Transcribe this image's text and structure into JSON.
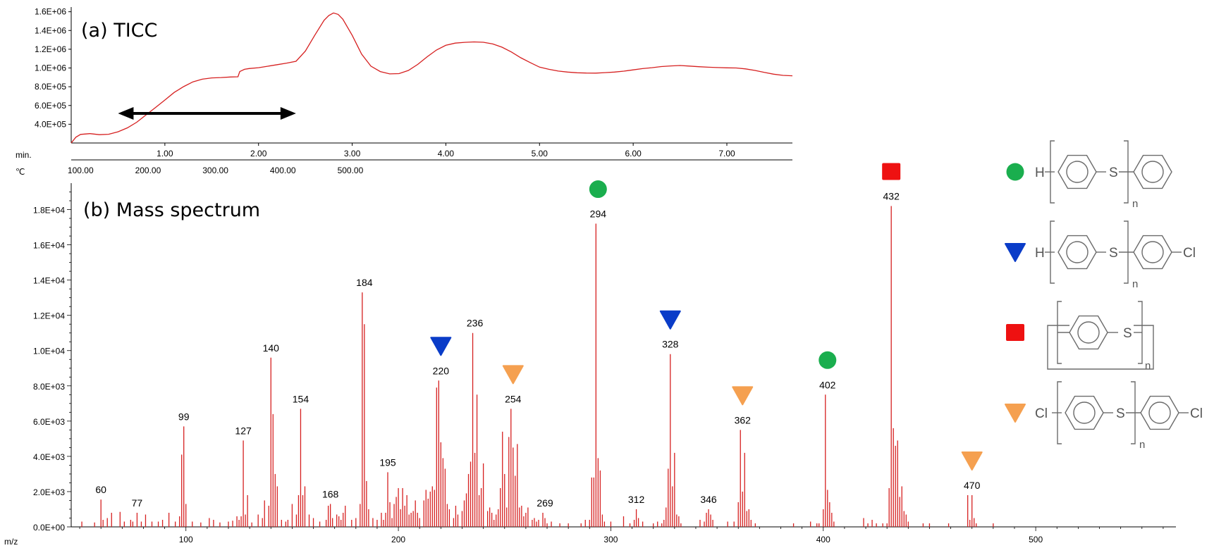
{
  "chart_data": [
    {
      "type": "line",
      "title": "(a) TICC",
      "xlabel": "min.",
      "secondary_xlabel": "℃",
      "xlim": [
        0,
        7.7
      ],
      "ylim": [
        200000,
        1650000
      ],
      "grid": false,
      "x_ticks": [
        "1.00",
        "2.00",
        "3.00",
        "4.00",
        "5.00",
        "6.00",
        "7.00"
      ],
      "temp_ticks": [
        "100.00",
        "200.00",
        "300.00",
        "400.00",
        "500.00"
      ],
      "y_ticks": [
        "1.6E+06",
        "1.4E+06",
        "1.2E+06",
        "1.0E+06",
        "8.0E+05",
        "6.0E+05",
        "4.0E+05"
      ],
      "series": [
        {
          "color": "#d62020",
          "x": [
            0.0,
            0.05,
            0.1,
            0.2,
            0.3,
            0.4,
            0.5,
            0.6,
            0.7,
            0.8,
            0.9,
            1.0,
            1.1,
            1.2,
            1.3,
            1.4,
            1.5,
            1.6,
            1.7,
            1.78,
            1.8,
            1.85,
            1.9,
            2.0,
            2.1,
            2.2,
            2.3,
            2.4,
            2.5,
            2.6,
            2.7,
            2.75,
            2.8,
            2.85,
            2.9,
            3.0,
            3.1,
            3.2,
            3.3,
            3.4,
            3.5,
            3.6,
            3.7,
            3.8,
            3.9,
            4.0,
            4.1,
            4.2,
            4.3,
            4.4,
            4.5,
            4.6,
            4.7,
            4.8,
            4.9,
            5.0,
            5.1,
            5.2,
            5.3,
            5.4,
            5.5,
            5.6,
            5.7,
            5.8,
            5.9,
            6.0,
            6.1,
            6.2,
            6.3,
            6.4,
            6.5,
            6.6,
            6.7,
            6.8,
            6.9,
            7.0,
            7.1,
            7.2,
            7.3,
            7.4,
            7.5,
            7.6,
            7.7
          ],
          "values": [
            200000,
            260000,
            290000,
            300000,
            290000,
            295000,
            320000,
            360000,
            420000,
            500000,
            580000,
            660000,
            740000,
            800000,
            850000,
            880000,
            895000,
            900000,
            905000,
            905000,
            960000,
            985000,
            995000,
            1005000,
            1020000,
            1035000,
            1050000,
            1070000,
            1180000,
            1350000,
            1510000,
            1560000,
            1585000,
            1570000,
            1520000,
            1350000,
            1150000,
            1020000,
            960000,
            935000,
            940000,
            975000,
            1040000,
            1120000,
            1190000,
            1240000,
            1265000,
            1275000,
            1280000,
            1275000,
            1255000,
            1220000,
            1170000,
            1110000,
            1060000,
            1010000,
            985000,
            965000,
            955000,
            950000,
            948000,
            947000,
            950000,
            955000,
            965000,
            980000,
            995000,
            1005000,
            1015000,
            1020000,
            1025000,
            1020000,
            1015000,
            1010000,
            1005000,
            1000000,
            998000,
            990000,
            975000,
            955000,
            935000,
            920000,
            915000
          ]
        }
      ],
      "annotations": [
        {
          "type": "double-arrow",
          "x_start": 0.5,
          "x_end": 2.4,
          "y": 500000,
          "color": "#000000"
        }
      ]
    },
    {
      "type": "bar",
      "title": "(b) Mass spectrum",
      "xlabel": "m/z",
      "xlim": [
        46,
        566
      ],
      "ylim": [
        0,
        19500
      ],
      "grid": false,
      "x_ticks": [
        "100",
        "200",
        "300",
        "400",
        "500"
      ],
      "y_ticks": [
        "0.0E+00",
        "2.0E+03",
        "4.0E+03",
        "6.0E+03",
        "8.0E+03",
        "1.0E+04",
        "1.2E+04",
        "1.4E+04",
        "1.6E+04",
        "1.8E+04"
      ],
      "bar_color": "#d62020",
      "peaks": [
        [
          51,
          300
        ],
        [
          57,
          250
        ],
        [
          60,
          1550
        ],
        [
          61,
          400
        ],
        [
          63,
          500
        ],
        [
          65,
          800
        ],
        [
          69,
          850
        ],
        [
          71,
          300
        ],
        [
          74,
          400
        ],
        [
          75,
          300
        ],
        [
          77,
          800
        ],
        [
          79,
          300
        ],
        [
          81,
          700
        ],
        [
          84,
          300
        ],
        [
          87,
          300
        ],
        [
          89,
          400
        ],
        [
          92,
          800
        ],
        [
          95,
          300
        ],
        [
          97,
          600
        ],
        [
          98,
          4100
        ],
        [
          99,
          5700
        ],
        [
          100,
          1300
        ],
        [
          103,
          300
        ],
        [
          107,
          250
        ],
        [
          111,
          500
        ],
        [
          113,
          400
        ],
        [
          116,
          250
        ],
        [
          120,
          300
        ],
        [
          122,
          350
        ],
        [
          124,
          600
        ],
        [
          125,
          400
        ],
        [
          126,
          600
        ],
        [
          127,
          4900
        ],
        [
          128,
          700
        ],
        [
          129,
          1800
        ],
        [
          131,
          250
        ],
        [
          134,
          700
        ],
        [
          136,
          500
        ],
        [
          137,
          1500
        ],
        [
          139,
          1200
        ],
        [
          140,
          9600
        ],
        [
          141,
          6400
        ],
        [
          142,
          3000
        ],
        [
          143,
          2300
        ],
        [
          145,
          400
        ],
        [
          147,
          300
        ],
        [
          148,
          400
        ],
        [
          150,
          1300
        ],
        [
          152,
          700
        ],
        [
          153,
          1800
        ],
        [
          154,
          6700
        ],
        [
          155,
          1800
        ],
        [
          156,
          2300
        ],
        [
          158,
          700
        ],
        [
          160,
          500
        ],
        [
          163,
          300
        ],
        [
          166,
          400
        ],
        [
          167,
          1200
        ],
        [
          168,
          1300
        ],
        [
          169,
          500
        ],
        [
          171,
          700
        ],
        [
          172,
          600
        ],
        [
          173,
          400
        ],
        [
          174,
          800
        ],
        [
          175,
          1200
        ],
        [
          178,
          400
        ],
        [
          180,
          500
        ],
        [
          182,
          1300
        ],
        [
          183,
          13300
        ],
        [
          184,
          11500
        ],
        [
          185,
          2600
        ],
        [
          186,
          1000
        ],
        [
          188,
          500
        ],
        [
          190,
          400
        ],
        [
          192,
          800
        ],
        [
          193,
          400
        ],
        [
          194,
          800
        ],
        [
          195,
          3100
        ],
        [
          196,
          1400
        ],
        [
          197,
          500
        ],
        [
          198,
          1300
        ],
        [
          199,
          1700
        ],
        [
          200,
          2200
        ],
        [
          201,
          1000
        ],
        [
          202,
          2200
        ],
        [
          203,
          1200
        ],
        [
          204,
          1800
        ],
        [
          205,
          700
        ],
        [
          206,
          800
        ],
        [
          207,
          900
        ],
        [
          208,
          1500
        ],
        [
          209,
          800
        ],
        [
          210,
          500
        ],
        [
          212,
          1500
        ],
        [
          213,
          2100
        ],
        [
          214,
          1600
        ],
        [
          215,
          2000
        ],
        [
          216,
          2300
        ],
        [
          217,
          2100
        ],
        [
          218,
          7900
        ],
        [
          219,
          8300
        ],
        [
          220,
          4800
        ],
        [
          221,
          3900
        ],
        [
          222,
          3300
        ],
        [
          223,
          1300
        ],
        [
          224,
          1000
        ],
        [
          226,
          500
        ],
        [
          227,
          1200
        ],
        [
          228,
          700
        ],
        [
          230,
          900
        ],
        [
          231,
          1500
        ],
        [
          232,
          1900
        ],
        [
          233,
          3000
        ],
        [
          234,
          3700
        ],
        [
          235,
          11000
        ],
        [
          236,
          4200
        ],
        [
          237,
          7500
        ],
        [
          238,
          1800
        ],
        [
          239,
          2200
        ],
        [
          240,
          3600
        ],
        [
          242,
          900
        ],
        [
          243,
          1100
        ],
        [
          244,
          800
        ],
        [
          245,
          400
        ],
        [
          246,
          700
        ],
        [
          247,
          1000
        ],
        [
          248,
          2200
        ],
        [
          249,
          5400
        ],
        [
          250,
          3000
        ],
        [
          251,
          1100
        ],
        [
          252,
          5100
        ],
        [
          253,
          6700
        ],
        [
          254,
          4500
        ],
        [
          255,
          2900
        ],
        [
          256,
          4700
        ],
        [
          257,
          1100
        ],
        [
          258,
          1200
        ],
        [
          259,
          600
        ],
        [
          260,
          800
        ],
        [
          261,
          1100
        ],
        [
          263,
          400
        ],
        [
          264,
          500
        ],
        [
          265,
          300
        ],
        [
          266,
          400
        ],
        [
          268,
          800
        ],
        [
          269,
          500
        ],
        [
          270,
          200
        ],
        [
          272,
          300
        ],
        [
          276,
          200
        ],
        [
          280,
          200
        ],
        [
          286,
          200
        ],
        [
          288,
          400
        ],
        [
          290,
          400
        ],
        [
          291,
          2800
        ],
        [
          292,
          2800
        ],
        [
          293,
          17200
        ],
        [
          294,
          3900
        ],
        [
          295,
          3200
        ],
        [
          296,
          700
        ],
        [
          297,
          300
        ],
        [
          300,
          300
        ],
        [
          306,
          600
        ],
        [
          309,
          200
        ],
        [
          311,
          400
        ],
        [
          312,
          1000
        ],
        [
          313,
          500
        ],
        [
          315,
          300
        ],
        [
          320,
          200
        ],
        [
          322,
          300
        ],
        [
          324,
          200
        ],
        [
          325,
          400
        ],
        [
          326,
          1100
        ],
        [
          327,
          3300
        ],
        [
          328,
          9800
        ],
        [
          329,
          2300
        ],
        [
          330,
          4200
        ],
        [
          331,
          700
        ],
        [
          332,
          600
        ],
        [
          333,
          200
        ],
        [
          342,
          400
        ],
        [
          344,
          300
        ],
        [
          345,
          800
        ],
        [
          346,
          1000
        ],
        [
          347,
          700
        ],
        [
          348,
          400
        ],
        [
          355,
          300
        ],
        [
          358,
          300
        ],
        [
          360,
          1400
        ],
        [
          361,
          5500
        ],
        [
          362,
          2000
        ],
        [
          363,
          4200
        ],
        [
          364,
          900
        ],
        [
          365,
          1000
        ],
        [
          366,
          400
        ],
        [
          368,
          200
        ],
        [
          386,
          200
        ],
        [
          394,
          300
        ],
        [
          397,
          200
        ],
        [
          398,
          200
        ],
        [
          400,
          1000
        ],
        [
          401,
          7500
        ],
        [
          402,
          2100
        ],
        [
          403,
          1400
        ],
        [
          404,
          800
        ],
        [
          405,
          300
        ],
        [
          419,
          500
        ],
        [
          421,
          200
        ],
        [
          423,
          400
        ],
        [
          425,
          200
        ],
        [
          428,
          200
        ],
        [
          430,
          200
        ],
        [
          431,
          2200
        ],
        [
          432,
          18200
        ],
        [
          433,
          5600
        ],
        [
          434,
          4600
        ],
        [
          435,
          4900
        ],
        [
          436,
          1700
        ],
        [
          437,
          2300
        ],
        [
          438,
          900
        ],
        [
          439,
          700
        ],
        [
          440,
          300
        ],
        [
          447,
          200
        ],
        [
          450,
          200
        ],
        [
          459,
          200
        ],
        [
          468,
          1800
        ],
        [
          469,
          400
        ],
        [
          470,
          1800
        ],
        [
          471,
          500
        ],
        [
          472,
          200
        ],
        [
          480,
          200
        ]
      ],
      "peak_labels": [
        {
          "mz": 60,
          "text": "60"
        },
        {
          "mz": 77,
          "text": "77"
        },
        {
          "mz": 99,
          "text": "99"
        },
        {
          "mz": 127,
          "text": "127"
        },
        {
          "mz": 140,
          "text": "140"
        },
        {
          "mz": 154,
          "text": "154"
        },
        {
          "mz": 168,
          "text": "168"
        },
        {
          "mz": 184,
          "text": "184"
        },
        {
          "mz": 195,
          "text": "195"
        },
        {
          "mz": 220,
          "text": "220"
        },
        {
          "mz": 236,
          "text": "236"
        },
        {
          "mz": 254,
          "text": "254"
        },
        {
          "mz": 269,
          "text": "269"
        },
        {
          "mz": 294,
          "text": "294"
        },
        {
          "mz": 312,
          "text": "312"
        },
        {
          "mz": 328,
          "text": "328"
        },
        {
          "mz": 346,
          "text": "346"
        },
        {
          "mz": 362,
          "text": "362"
        },
        {
          "mz": 402,
          "text": "402"
        },
        {
          "mz": 432,
          "text": "432"
        },
        {
          "mz": 470,
          "text": "470"
        }
      ],
      "peak_markers": [
        {
          "mz": 220,
          "shape": "triangle-down",
          "color": "#0a3cc8"
        },
        {
          "mz": 254,
          "shape": "triangle-down",
          "color": "#f5a050"
        },
        {
          "mz": 294,
          "shape": "circle",
          "color": "#1aae4e"
        },
        {
          "mz": 328,
          "shape": "triangle-down",
          "color": "#0a3cc8"
        },
        {
          "mz": 362,
          "shape": "triangle-down",
          "color": "#f5a050"
        },
        {
          "mz": 402,
          "shape": "circle",
          "color": "#1aae4e"
        },
        {
          "mz": 432,
          "shape": "square",
          "color": "#ee1111"
        },
        {
          "mz": 470,
          "shape": "triangle-down",
          "color": "#f5a050"
        }
      ]
    }
  ],
  "legend": {
    "subscript": "n",
    "items": [
      {
        "shape": "circle",
        "color": "#1aae4e",
        "left": "H",
        "right": "",
        "kind": "open-end-phenyl"
      },
      {
        "shape": "triangle-down",
        "color": "#0a3cc8",
        "left": "H",
        "right": "Cl",
        "kind": "chloro-end"
      },
      {
        "shape": "square",
        "color": "#ee1111",
        "left": "",
        "right": "",
        "kind": "cyclic"
      },
      {
        "shape": "triangle-down",
        "color": "#f5a050",
        "left": "Cl",
        "right": "Cl",
        "kind": "chloro-end"
      }
    ],
    "repeat_unit_atom": "S"
  }
}
